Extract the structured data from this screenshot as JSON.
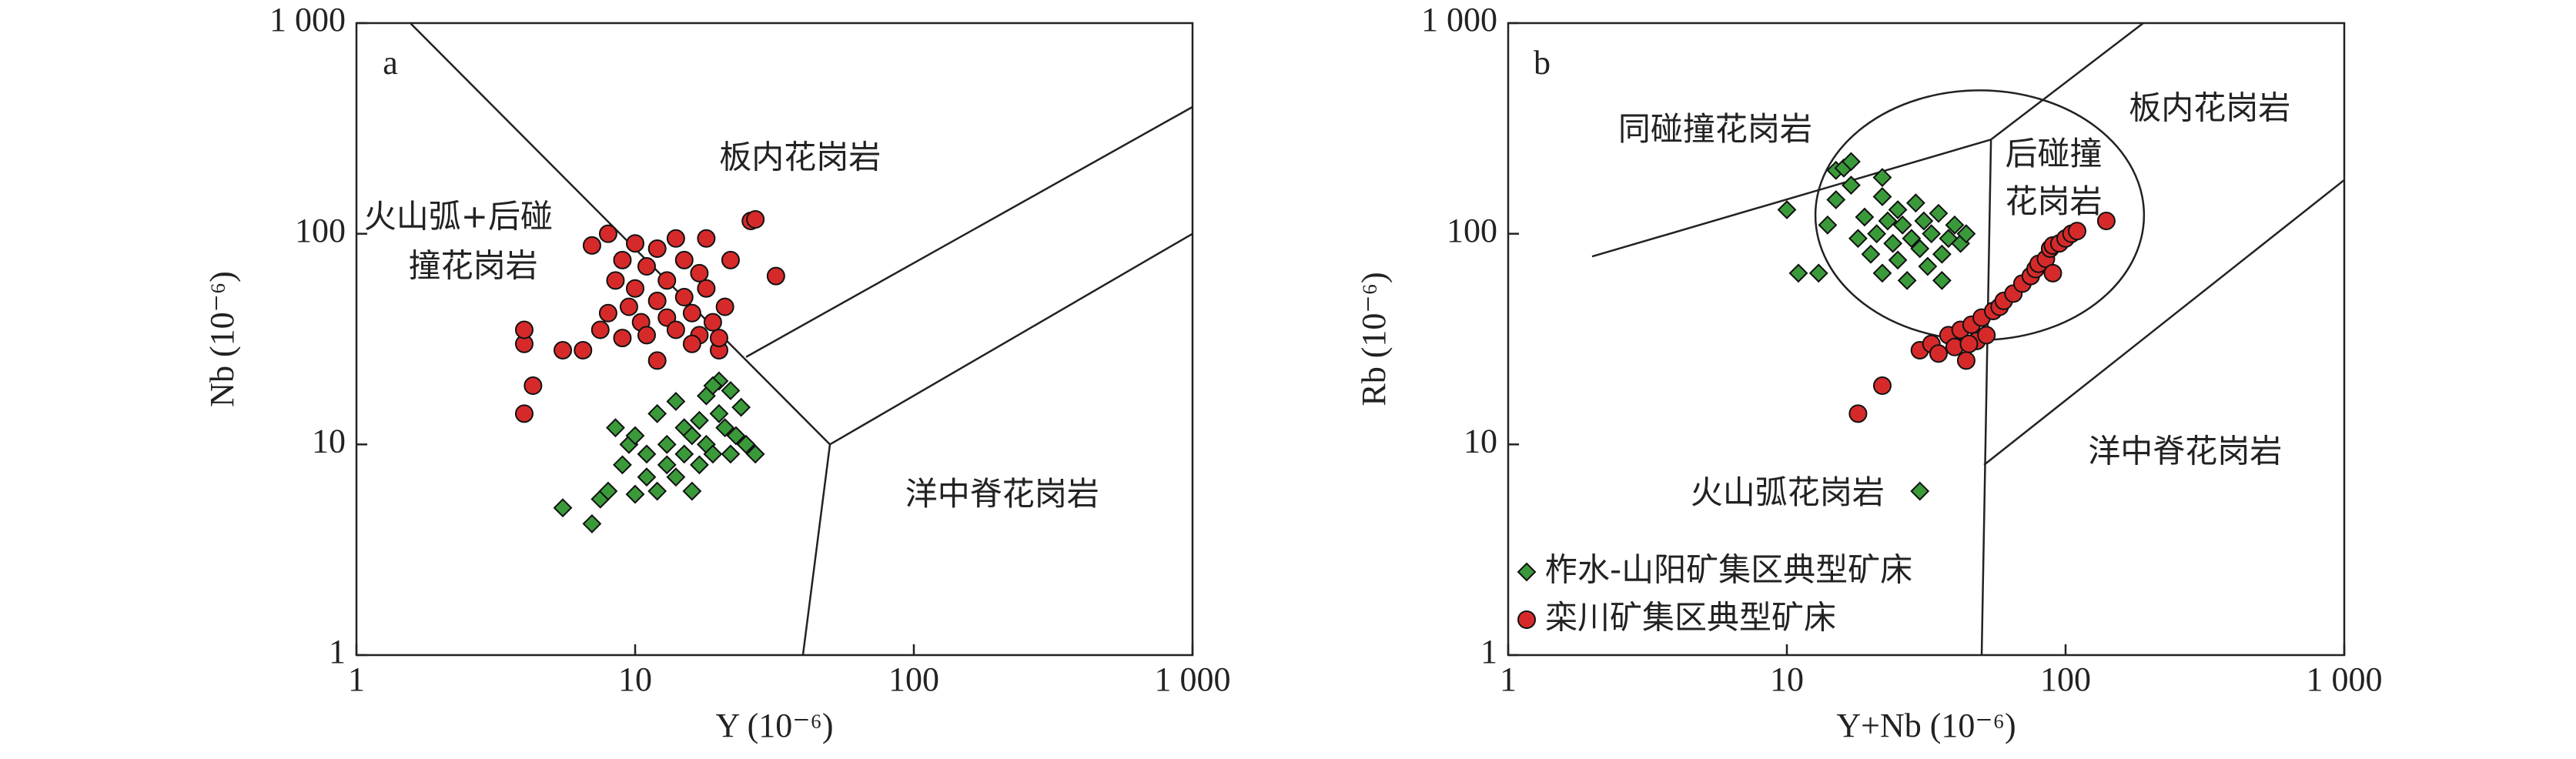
{
  "chart_data": [
    {
      "type": "scatter",
      "panel": "a",
      "x_label": "Y (10⁻⁶)",
      "y_label": "Nb (10⁻⁶)",
      "log_x": true,
      "log_y": true,
      "xlim": [
        1,
        1000
      ],
      "ylim": [
        1,
        1000
      ],
      "xticks": [
        1,
        10,
        100,
        {
          "value": 1000,
          "label": "1 000"
        }
      ],
      "yticks": [
        1,
        10,
        100,
        {
          "value": 1000,
          "label": "1 000"
        }
      ],
      "annotations": [
        "板内花岗岩",
        "火山弧+后碰",
        "撞花岗岩",
        "洋中脊花岗岩"
      ],
      "boundaries": [
        [
          [
            1.56,
            1000
          ],
          [
            50,
            10
          ]
        ],
        [
          [
            50,
            10
          ],
          [
            40,
            1
          ]
        ],
        [
          [
            50,
            10
          ],
          [
            1000,
            100
          ]
        ],
        [
          [
            25,
            26
          ],
          [
            1000,
            400
          ]
        ]
      ],
      "series": [
        {
          "name": "柞水-山阳矿集区典型矿床",
          "color": "#3a9a3a",
          "marker": "diamond",
          "x": [
            5.5,
            7,
            7.5,
            8,
            8.5,
            9,
            9.5,
            10,
            10,
            11,
            11,
            12,
            12,
            13,
            13,
            14,
            14,
            15,
            15,
            16,
            17,
            17,
            18,
            18,
            19,
            20,
            20,
            21,
            22,
            22,
            23,
            24,
            25,
            27,
            16,
            19
          ],
          "values": [
            5,
            4.2,
            5.5,
            6,
            12,
            8,
            10,
            5.8,
            11,
            7,
            9,
            14,
            6,
            8,
            10,
            16,
            7,
            12,
            9,
            11,
            13,
            8,
            17,
            10,
            9,
            14,
            20,
            12,
            18,
            9,
            11,
            15,
            10,
            9,
            6,
            19
          ]
        },
        {
          "name": "栾川矿集区典型矿床",
          "color": "#d62a2a",
          "marker": "circle",
          "x": [
            4,
            4,
            4,
            4.3,
            5.5,
            6.5,
            7,
            7.5,
            8,
            8,
            8.5,
            9,
            9,
            9.5,
            10,
            10,
            10.5,
            11,
            11,
            12,
            12,
            13,
            13,
            14,
            14,
            15,
            15,
            16,
            17,
            17,
            18,
            18,
            19,
            20,
            20,
            21,
            22,
            26,
            27,
            32,
            12,
            16
          ],
          "values": [
            14,
            30,
            35,
            19,
            28,
            28,
            88,
            35,
            100,
            42,
            60,
            32,
            75,
            45,
            55,
            90,
            38,
            70,
            33,
            48,
            85,
            40,
            60,
            95,
            35,
            50,
            75,
            42,
            65,
            33,
            55,
            95,
            38,
            28,
            32,
            45,
            75,
            115,
            117,
            63,
            25,
            30
          ]
        }
      ]
    },
    {
      "type": "scatter",
      "panel": "b",
      "x_label": "Y+Nb (10⁻⁶)",
      "y_label": "Rb (10⁻⁶)",
      "log_x": true,
      "log_y": true,
      "legend": "lower left",
      "xlim": [
        1,
        1000
      ],
      "ylim": [
        1,
        1000
      ],
      "xticks": [
        1,
        10,
        100,
        {
          "value": 1000,
          "label": "1 000"
        }
      ],
      "yticks": [
        1,
        10,
        100,
        {
          "value": 1000,
          "label": "1 000"
        }
      ],
      "annotations": [
        "同碰撞花岗岩",
        "后碰撞",
        "花岗岩",
        "板内花岗岩",
        "火山弧花岗岩",
        "洋中脊花岗岩"
      ],
      "boundaries": [
        [
          [
            2,
            78
          ],
          [
            54,
            280
          ]
        ],
        [
          [
            54,
            280
          ],
          [
            190,
            1000
          ]
        ],
        [
          [
            54,
            280
          ],
          [
            50,
            1
          ]
        ],
        [
          [
            51,
            8
          ],
          [
            1000,
            180
          ]
        ]
      ],
      "series": [
        {
          "name": "柞水-山阳矿集区典型矿床",
          "color": "#3a9a3a",
          "marker": "diamond",
          "x": [
            10,
            11,
            13,
            14,
            15,
            15,
            16,
            17,
            17,
            18,
            19,
            20,
            21,
            22,
            22,
            23,
            24,
            25,
            25,
            26,
            27,
            28,
            29,
            30,
            31,
            32,
            33,
            35,
            36,
            38,
            40,
            42,
            44,
            22,
            36,
            30
          ],
          "values": [
            130,
            65,
            65,
            110,
            200,
            145,
            205,
            220,
            170,
            95,
            120,
            80,
            100,
            150,
            65,
            115,
            90,
            75,
            130,
            110,
            60,
            95,
            140,
            85,
            115,
            70,
            100,
            125,
            80,
            95,
            110,
            90,
            100,
            185,
            60,
            6
          ]
        },
        {
          "name": "栾川矿集区典型矿床",
          "color": "#d62a2a",
          "marker": "circle",
          "x": [
            18,
            22,
            30,
            33,
            35,
            38,
            40,
            42,
            44,
            46,
            48,
            50,
            52,
            55,
            58,
            60,
            65,
            70,
            75,
            78,
            80,
            85,
            88,
            90,
            95,
            100,
            105,
            110,
            140,
            90,
            45
          ],
          "values": [
            14,
            19,
            28,
            30,
            27,
            33,
            29,
            35,
            25,
            37,
            31,
            40,
            33,
            43,
            45,
            48,
            52,
            58,
            63,
            68,
            72,
            76,
            85,
            88,
            90,
            95,
            100,
            103,
            115,
            65,
            30
          ]
        }
      ]
    }
  ]
}
